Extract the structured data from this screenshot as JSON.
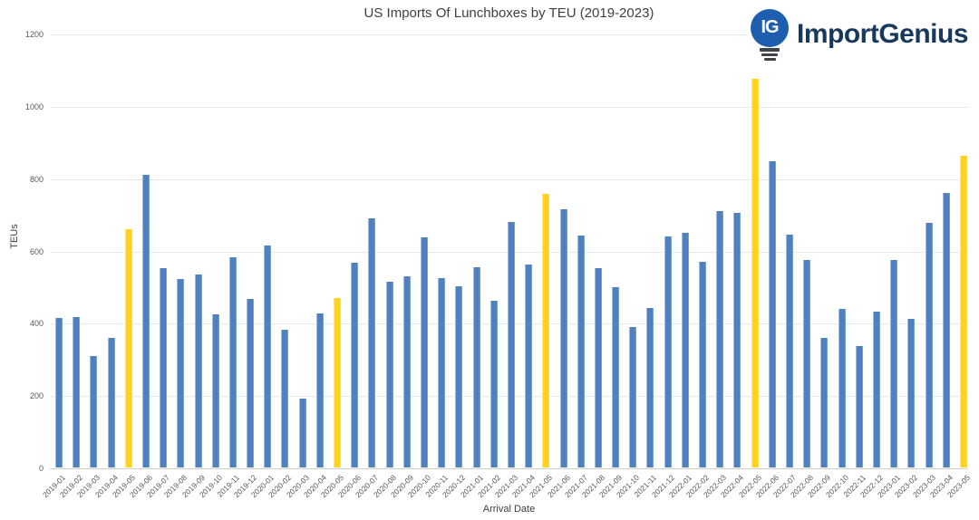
{
  "header": {
    "title": "US Imports Of Lunchboxes by TEU (2019-2023)",
    "logo": {
      "icon_text": "IG",
      "brand": "ImportGenius",
      "bulb_color": "#1d5fae",
      "brand_text_color": "#17395e"
    }
  },
  "chart_data": {
    "type": "bar",
    "title": "US Imports Of Lunchboxes by TEU (2019-2023)",
    "xlabel": "Arrival Date",
    "ylabel": "TEUs",
    "ylim": [
      0,
      1200
    ],
    "yticks": [
      0,
      200,
      400,
      600,
      800,
      1000,
      1200
    ],
    "grid": true,
    "legend": "none",
    "bar_color": "#4e81bd",
    "highlight_color": "#ffd21e",
    "highlighted_categories": [
      "2019-05",
      "2020-05",
      "2021-05",
      "2022-05",
      "2023-05"
    ],
    "categories": [
      "2019-01",
      "2019-02",
      "2019-03",
      "2019-04",
      "2019-05",
      "2019-06",
      "2019-07",
      "2019-08",
      "2019-09",
      "2019-10",
      "2019-11",
      "2019-12",
      "2020-01",
      "2020-02",
      "2020-03",
      "2020-04",
      "2020-05",
      "2020-06",
      "2020-07",
      "2020-08",
      "2020-09",
      "2020-10",
      "2020-11",
      "2020-12",
      "2021-01",
      "2021-02",
      "2021-03",
      "2021-04",
      "2021-05",
      "2021-06",
      "2021-07",
      "2021-08",
      "2021-09",
      "2021-10",
      "2021-11",
      "2021-12",
      "2022-01",
      "2022-02",
      "2022-03",
      "2022-04",
      "2022-05",
      "2022-06",
      "2022-07",
      "2022-08",
      "2022-09",
      "2022-10",
      "2022-11",
      "2022-12",
      "2023-01",
      "2023-02",
      "2023-03",
      "2023-04",
      "2023-05"
    ],
    "values": [
      413,
      416,
      308,
      357,
      658,
      810,
      552,
      522,
      533,
      423,
      581,
      466,
      613,
      380,
      190,
      425,
      468,
      565,
      688,
      513,
      528,
      636,
      523,
      502,
      554,
      460,
      680,
      560,
      756,
      714,
      642,
      550,
      498,
      388,
      441,
      640,
      648,
      569,
      709,
      704,
      1075,
      848,
      644,
      574,
      358,
      439,
      336,
      430,
      574,
      412,
      677,
      760,
      862
    ]
  }
}
